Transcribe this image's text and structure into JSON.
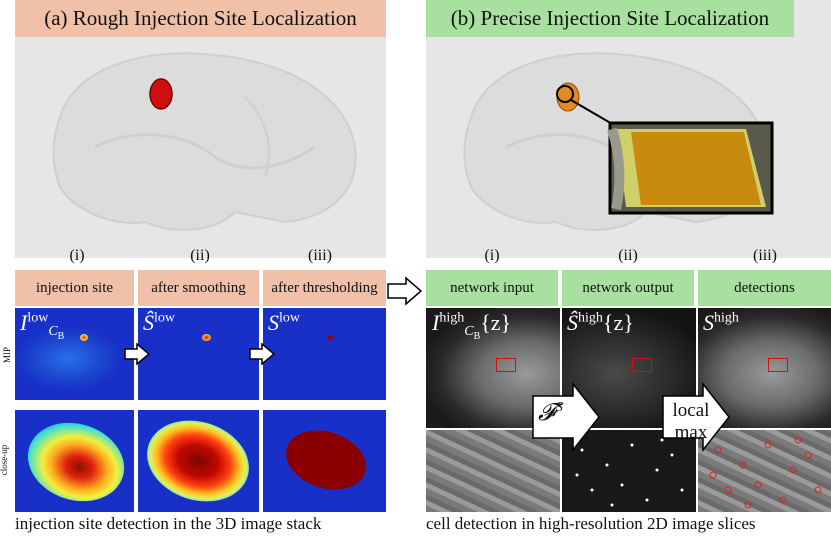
{
  "panel_a": {
    "title": "(a) Rough Injection Site Localization",
    "title_bg": "#f0c0a8",
    "columns": [
      "(i)",
      "(ii)",
      "(iii)"
    ],
    "subtitles": [
      "injection site",
      "after smoothing",
      "after thresholding"
    ],
    "symbols": [
      {
        "main": "I",
        "sup": "low",
        "sub": "C",
        "subsub": "B"
      },
      {
        "main": "Ŝ",
        "sup": "low"
      },
      {
        "main": "S",
        "sup": "low"
      }
    ],
    "row_labels": [
      "MIP",
      "close-up"
    ],
    "caption": "injection site detection in the 3D image stack"
  },
  "panel_b": {
    "title": "(b) Precise Injection Site Localization",
    "title_bg": "#a8e0a0",
    "columns": [
      "(i)",
      "(ii)",
      "(iii)"
    ],
    "subtitles": [
      "network input",
      "network output",
      "detections"
    ],
    "symbols": [
      {
        "main": "I",
        "sup": "high",
        "sub": "C",
        "subsub": "B",
        "arg": "{z}"
      },
      {
        "main": "Ŝ",
        "sup": "high",
        "arg": "{z}"
      },
      {
        "main": "S",
        "sup": "high"
      }
    ],
    "arrow_labels": [
      "𝓕",
      "S",
      "local",
      "max"
    ],
    "caption": "cell detection in high-resolution 2D image slices"
  },
  "colors": {
    "accent_red": "#d01010",
    "heat_blue": "#1830c8",
    "gray_panel": "#e6e6e6"
  }
}
